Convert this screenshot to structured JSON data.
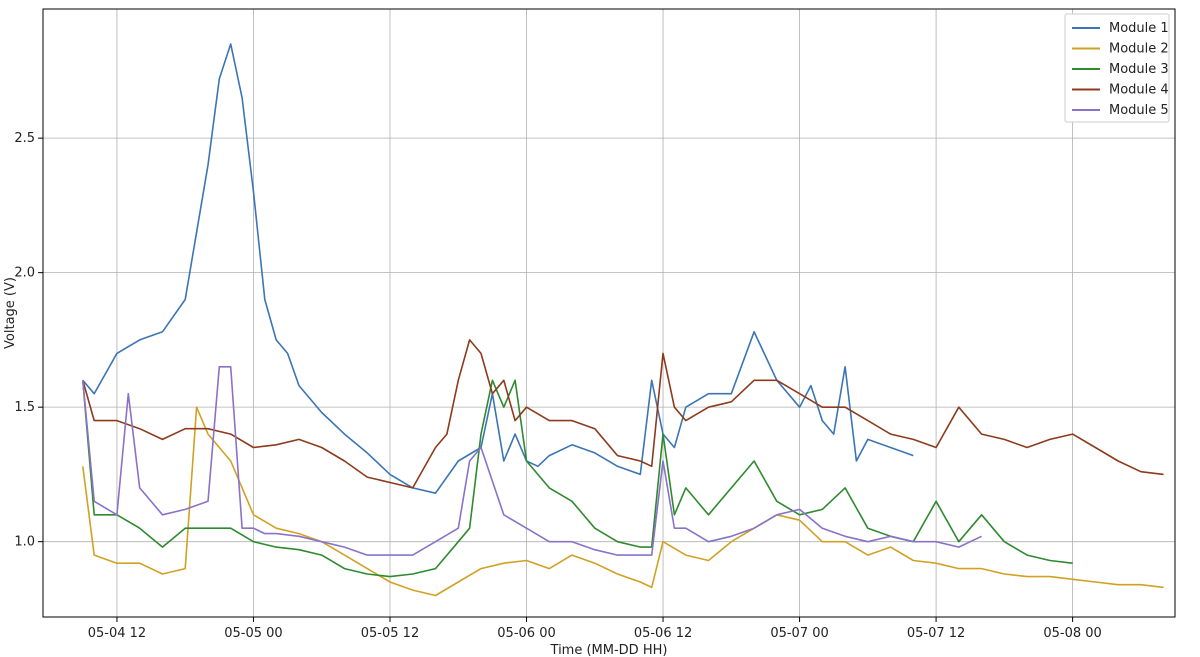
{
  "chart_data": {
    "type": "line",
    "title": "",
    "xlabel": "Time (MM-DD HH)",
    "ylabel": "Voltage (V)",
    "x_ticks": [
      "05-04 12",
      "05-05 00",
      "05-05 12",
      "05-06 00",
      "05-06 12",
      "05-07 00",
      "05-07 12",
      "05-08 00"
    ],
    "y_ticks": [
      "1.0",
      "1.5",
      "2.0",
      "2.5"
    ],
    "xlim_hours": [
      -6.5,
      93
    ],
    "ylim": [
      0.72,
      2.98
    ],
    "grid": true,
    "legend_position": "top-right",
    "x_unit_note": "hours relative to 05-04 12",
    "series": [
      {
        "name": "Module 1",
        "color": "#3b75b4",
        "x": [
          -3,
          -2,
          0,
          2,
          4,
          6,
          8,
          9,
          10,
          11,
          12,
          13,
          14,
          15,
          16,
          18,
          20,
          22,
          24,
          26,
          28,
          30,
          32,
          33,
          34,
          35,
          36,
          37,
          38,
          40,
          42,
          44,
          46,
          47,
          48,
          49,
          50,
          52,
          54,
          56,
          58,
          60,
          61,
          62,
          63,
          64,
          65,
          66,
          68,
          70,
          72,
          74,
          76,
          77,
          78,
          80,
          82,
          84,
          86,
          88,
          90
        ],
        "y": [
          1.6,
          1.55,
          1.7,
          1.75,
          1.78,
          1.9,
          2.4,
          2.72,
          2.85,
          2.65,
          2.3,
          1.9,
          1.75,
          1.7,
          1.58,
          1.48,
          1.4,
          1.33,
          1.25,
          1.2,
          1.18,
          1.3,
          1.35,
          1.55,
          1.3,
          1.4,
          1.3,
          1.28,
          1.32,
          1.36,
          1.33,
          1.28,
          1.25,
          1.6,
          1.4,
          1.35,
          1.5,
          1.55,
          1.55,
          1.78,
          1.6,
          1.5,
          1.58,
          1.45,
          1.4,
          1.65,
          1.3,
          1.38,
          1.35,
          1.32,
          null,
          null,
          null,
          null,
          null,
          null,
          null,
          null,
          null,
          null,
          null
        ]
      },
      {
        "name": "Module 2",
        "color": "#d1a123",
        "x": [
          -3,
          -2,
          0,
          2,
          4,
          6,
          7,
          8,
          9,
          10,
          12,
          14,
          16,
          18,
          20,
          22,
          24,
          26,
          28,
          30,
          32,
          34,
          36,
          38,
          40,
          42,
          44,
          46,
          47,
          48,
          50,
          52,
          54,
          56,
          58,
          60,
          62,
          64,
          66,
          68,
          70,
          72,
          74,
          76,
          78,
          80,
          82,
          84,
          86,
          88,
          90,
          92
        ],
        "y": [
          1.28,
          0.95,
          0.92,
          0.92,
          0.88,
          0.9,
          1.5,
          1.4,
          1.35,
          1.3,
          1.1,
          1.05,
          1.03,
          1.0,
          0.95,
          0.9,
          0.85,
          0.82,
          0.8,
          0.85,
          0.9,
          0.92,
          0.93,
          0.9,
          0.95,
          0.92,
          0.88,
          0.85,
          0.83,
          1.0,
          0.95,
          0.93,
          1.0,
          1.05,
          1.1,
          1.08,
          1.0,
          1.0,
          0.95,
          0.98,
          0.93,
          0.92,
          0.9,
          0.9,
          0.88,
          0.87,
          0.87,
          0.86,
          0.85,
          0.84,
          0.84,
          0.83
        ]
      },
      {
        "name": "Module 3",
        "color": "#2f8a2f",
        "x": [
          -3,
          -2,
          0,
          2,
          4,
          6,
          8,
          10,
          12,
          14,
          16,
          18,
          20,
          22,
          24,
          26,
          28,
          30,
          31,
          32,
          33,
          34,
          35,
          36,
          38,
          40,
          42,
          44,
          46,
          47,
          48,
          49,
          50,
          52,
          54,
          56,
          58,
          60,
          62,
          64,
          66,
          68,
          70,
          72,
          74,
          76,
          78,
          80,
          82,
          84,
          86,
          88,
          90
        ],
        "y": [
          1.6,
          1.1,
          1.1,
          1.05,
          0.98,
          1.05,
          1.05,
          1.05,
          1.0,
          0.98,
          0.97,
          0.95,
          0.9,
          0.88,
          0.87,
          0.88,
          0.9,
          1.0,
          1.05,
          1.4,
          1.6,
          1.5,
          1.6,
          1.3,
          1.2,
          1.15,
          1.05,
          1.0,
          0.98,
          0.98,
          1.4,
          1.1,
          1.2,
          1.1,
          1.2,
          1.3,
          1.15,
          1.1,
          1.12,
          1.2,
          1.05,
          1.02,
          1.0,
          1.15,
          1.0,
          1.1,
          1.0,
          0.95,
          0.93,
          0.92,
          null,
          null,
          null
        ]
      },
      {
        "name": "Module 4",
        "color": "#8c3b1c",
        "x": [
          -3,
          -2,
          0,
          2,
          4,
          6,
          8,
          10,
          12,
          14,
          16,
          18,
          20,
          22,
          24,
          26,
          28,
          29,
          30,
          31,
          32,
          33,
          34,
          35,
          36,
          38,
          40,
          42,
          44,
          46,
          47,
          48,
          49,
          50,
          52,
          54,
          56,
          58,
          60,
          62,
          64,
          66,
          68,
          70,
          72,
          74,
          76,
          78,
          80,
          82,
          84,
          86,
          88,
          90,
          92
        ],
        "y": [
          1.6,
          1.45,
          1.45,
          1.42,
          1.38,
          1.42,
          1.42,
          1.4,
          1.35,
          1.36,
          1.38,
          1.35,
          1.3,
          1.24,
          1.22,
          1.2,
          1.35,
          1.4,
          1.6,
          1.75,
          1.7,
          1.55,
          1.6,
          1.45,
          1.5,
          1.45,
          1.45,
          1.42,
          1.32,
          1.3,
          1.28,
          1.7,
          1.5,
          1.45,
          1.5,
          1.52,
          1.6,
          1.6,
          1.55,
          1.5,
          1.5,
          1.45,
          1.4,
          1.38,
          1.35,
          1.5,
          1.4,
          1.38,
          1.35,
          1.38,
          1.4,
          1.35,
          1.3,
          1.26,
          1.25
        ]
      },
      {
        "name": "Module 5",
        "color": "#8a72c8",
        "x": [
          -3,
          -2,
          0,
          1,
          2,
          4,
          6,
          8,
          9,
          10,
          11,
          12,
          13,
          14,
          16,
          18,
          20,
          22,
          24,
          26,
          28,
          30,
          31,
          32,
          34,
          36,
          38,
          40,
          42,
          44,
          46,
          47,
          48,
          49,
          50,
          52,
          54,
          56,
          58,
          60,
          62,
          64,
          66,
          68,
          70,
          72,
          74,
          76,
          78,
          80,
          82,
          84,
          86,
          88,
          90
        ],
        "y": [
          1.6,
          1.15,
          1.1,
          1.55,
          1.2,
          1.1,
          1.12,
          1.15,
          1.65,
          1.65,
          1.05,
          1.05,
          1.03,
          1.03,
          1.02,
          1.0,
          0.98,
          0.95,
          0.95,
          0.95,
          1.0,
          1.05,
          1.3,
          1.35,
          1.1,
          1.05,
          1.0,
          1.0,
          0.97,
          0.95,
          0.95,
          0.95,
          1.3,
          1.05,
          1.05,
          1.0,
          1.02,
          1.05,
          1.1,
          1.12,
          1.05,
          1.02,
          1.0,
          1.02,
          1.0,
          1.0,
          0.98,
          1.02,
          null,
          null,
          null,
          null,
          null,
          null,
          null
        ]
      }
    ]
  }
}
